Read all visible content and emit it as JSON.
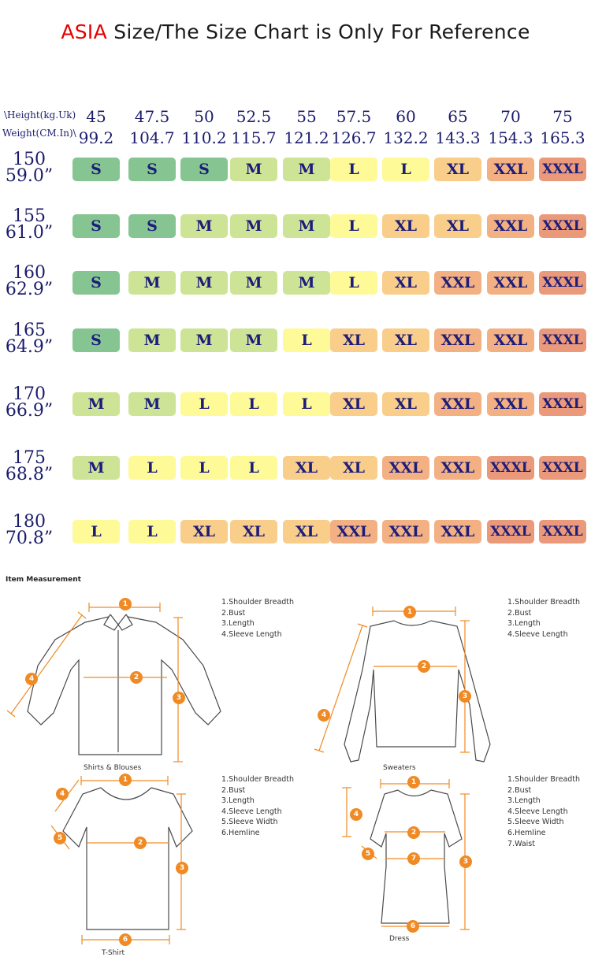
{
  "title": {
    "asia": "ASIA",
    "rest": " Size/The Size Chart is Only For Reference"
  },
  "header": {
    "weight_label": "\\Height(kg.Uk)",
    "height_label": "Weight(CM.In)\\",
    "kg": [
      "45",
      "47.5",
      "50",
      "52.5",
      "55",
      "57.5",
      "60",
      "65",
      "70",
      "75"
    ],
    "lb": [
      "99.2",
      "104.7",
      "110.2",
      "115.7",
      "121.2",
      "126.7",
      "132.2",
      "143.3",
      "154.3",
      "165.3"
    ]
  },
  "rows": [
    {
      "cm": "150",
      "in": "59.0”",
      "sizes": [
        "S",
        "S",
        "S",
        "M",
        "M",
        "L",
        "L",
        "XL",
        "XXL",
        "XXXL"
      ]
    },
    {
      "cm": "155",
      "in": "61.0”",
      "sizes": [
        "S",
        "S",
        "M",
        "M",
        "M",
        "L",
        "XL",
        "XL",
        "XXL",
        "XXXL"
      ]
    },
    {
      "cm": "160",
      "in": "62.9”",
      "sizes": [
        "S",
        "M",
        "M",
        "M",
        "M",
        "L",
        "XL",
        "XXL",
        "XXL",
        "XXXL"
      ]
    },
    {
      "cm": "165",
      "in": "64.9”",
      "sizes": [
        "S",
        "M",
        "M",
        "M",
        "L",
        "XL",
        "XL",
        "XXL",
        "XXL",
        "XXXL"
      ]
    },
    {
      "cm": "170",
      "in": "66.9”",
      "sizes": [
        "M",
        "M",
        "L",
        "L",
        "L",
        "XL",
        "XL",
        "XXL",
        "XXL",
        "XXXL"
      ]
    },
    {
      "cm": "175",
      "in": "68.8”",
      "sizes": [
        "M",
        "L",
        "L",
        "L",
        "XL",
        "XL",
        "XXL",
        "XXL",
        "XXXL",
        "XXXL"
      ]
    },
    {
      "cm": "180",
      "in": "70.8”",
      "sizes": [
        "L",
        "L",
        "XL",
        "XL",
        "XL",
        "XXL",
        "XXL",
        "XXL",
        "XXXL",
        "XXXL"
      ]
    }
  ],
  "colors": {
    "S": "#86c592",
    "M": "#cde497",
    "L": "#fefa97",
    "XL": "#f9cd8a",
    "XXL": "#f3b183",
    "XXXL": "#ea9a7b",
    "measure": "#f08a24",
    "accent": "#e60000"
  },
  "measurement": {
    "title": "Item Measurement",
    "shirt": {
      "caption": "Shirts & Blouses",
      "items": [
        "1.Shoulder Breadth",
        "2.Bust",
        "3.Length",
        "4.Sleeve Length"
      ]
    },
    "sweater": {
      "caption": "Sweaters",
      "items": [
        "1.Shoulder Breadth",
        "2.Bust",
        "3.Length",
        "4.Sleeve Length"
      ]
    },
    "tshirt": {
      "caption": "T-Shirt",
      "items": [
        "1.Shoulder Breadth",
        "2.Bust",
        "3.Length",
        "4.Sleeve Length",
        "5.Sleeve Width",
        "6.Hemline"
      ]
    },
    "dress": {
      "caption": "Dress",
      "items": [
        "1.Shoulder Breadth",
        "2.Bust",
        "3.Length",
        "4.Sleeve Length",
        "5.Sleeve Width",
        "6.Hemline",
        "7.Waist"
      ]
    }
  }
}
